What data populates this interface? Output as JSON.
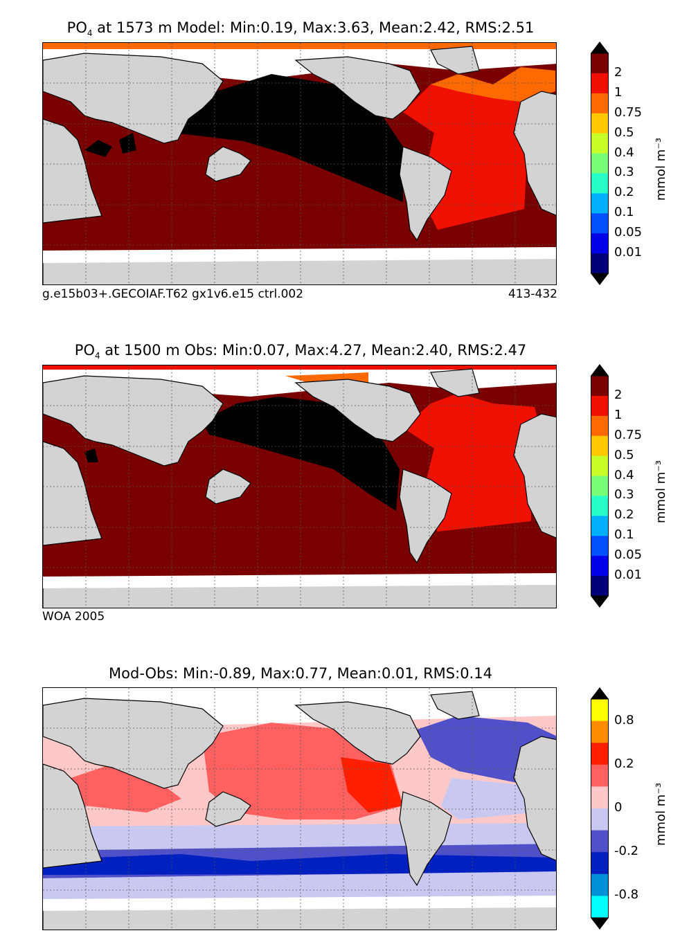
{
  "panels": [
    {
      "title_prefix": "PO",
      "title_sub": "4",
      "title_rest": " at 1573 m Model: Min:0.19, Max:3.63, Mean:2.42, RMS:2.51",
      "footer_left": "g.e15b03+.GECOIAF.T62 gx1v6.e15 ctrl.002",
      "footer_right": "413-432",
      "unit": "mmol m⁻³",
      "colorbar": {
        "labels": [
          "2",
          "1",
          "0.75",
          "0.5",
          "0.4",
          "0.3",
          "0.2",
          "0.1",
          "0.05",
          "0.01"
        ],
        "colors": [
          "#7a0000",
          "#f01000",
          "#ff6a00",
          "#ffc800",
          "#c8ff28",
          "#78ff78",
          "#28ffc8",
          "#00b0ff",
          "#0050ff",
          "#0000e8",
          "#00007a"
        ],
        "top_arrow": "#000000",
        "bottom_arrow": "#000000"
      }
    },
    {
      "title_prefix": "PO",
      "title_sub": "4",
      "title_rest": " at 1500 m Obs: Min:0.07, Max:4.27, Mean:2.40, RMS:2.47",
      "footer_left": "WOA 2005",
      "footer_right": "",
      "unit": "mmol m⁻³",
      "colorbar": {
        "labels": [
          "2",
          "1",
          "0.75",
          "0.5",
          "0.4",
          "0.3",
          "0.2",
          "0.1",
          "0.05",
          "0.01"
        ],
        "colors": [
          "#7a0000",
          "#f01000",
          "#ff6a00",
          "#ffc800",
          "#c8ff28",
          "#78ff78",
          "#28ffc8",
          "#00b0ff",
          "#0050ff",
          "#0000e8",
          "#00007a"
        ],
        "top_arrow": "#000000",
        "bottom_arrow": "#000000"
      }
    },
    {
      "title_prefix": "Mod-Obs: Min:-0.89, Max:0.77, Mean:0.01, RMS:0.14",
      "title_sub": "",
      "title_rest": "",
      "footer_left": "",
      "footer_right": "",
      "unit": "mmol m⁻³",
      "colorbar": {
        "labels": [
          "0.8",
          "0.2",
          "0",
          "-0.2",
          "-0.8"
        ],
        "label_slots": [
          1,
          3,
          5,
          7,
          9
        ],
        "colors": [
          "#ffff00",
          "#ff8c00",
          "#ff2000",
          "#ff6060",
          "#ffc8c8",
          "#c8c8f0",
          "#5050c8",
          "#0020c0",
          "#0090d8",
          "#00ffff"
        ],
        "top_arrow": "#000000",
        "bottom_arrow": "#000000"
      }
    }
  ],
  "map_colors": {
    "land": "#d3d3d3",
    "nodata": "#ffffff",
    "grid": "#555555"
  }
}
